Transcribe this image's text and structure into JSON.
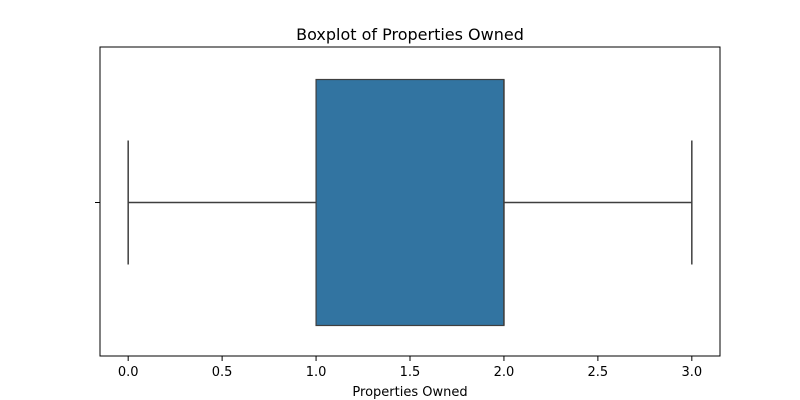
{
  "chart_data": {
    "type": "boxplot",
    "title": "Boxplot of Properties Owned",
    "xlabel": "Properties Owned",
    "ylabel": "",
    "xlim": [
      -0.15,
      3.15
    ],
    "xticks": [
      0.0,
      0.5,
      1.0,
      1.5,
      2.0,
      2.5,
      3.0
    ],
    "xtick_labels": [
      "0.0",
      "0.5",
      "1.0",
      "1.5",
      "2.0",
      "2.5",
      "3.0"
    ],
    "orientation": "horizontal",
    "grid": false,
    "box": {
      "whisker_low": 0,
      "q1": 1,
      "median": 2,
      "q3": 2,
      "whisker_high": 3
    },
    "colors": {
      "box_fill": "#3274a1",
      "line": "#3f3f3f",
      "axes": "#000000",
      "background": "#ffffff"
    }
  }
}
